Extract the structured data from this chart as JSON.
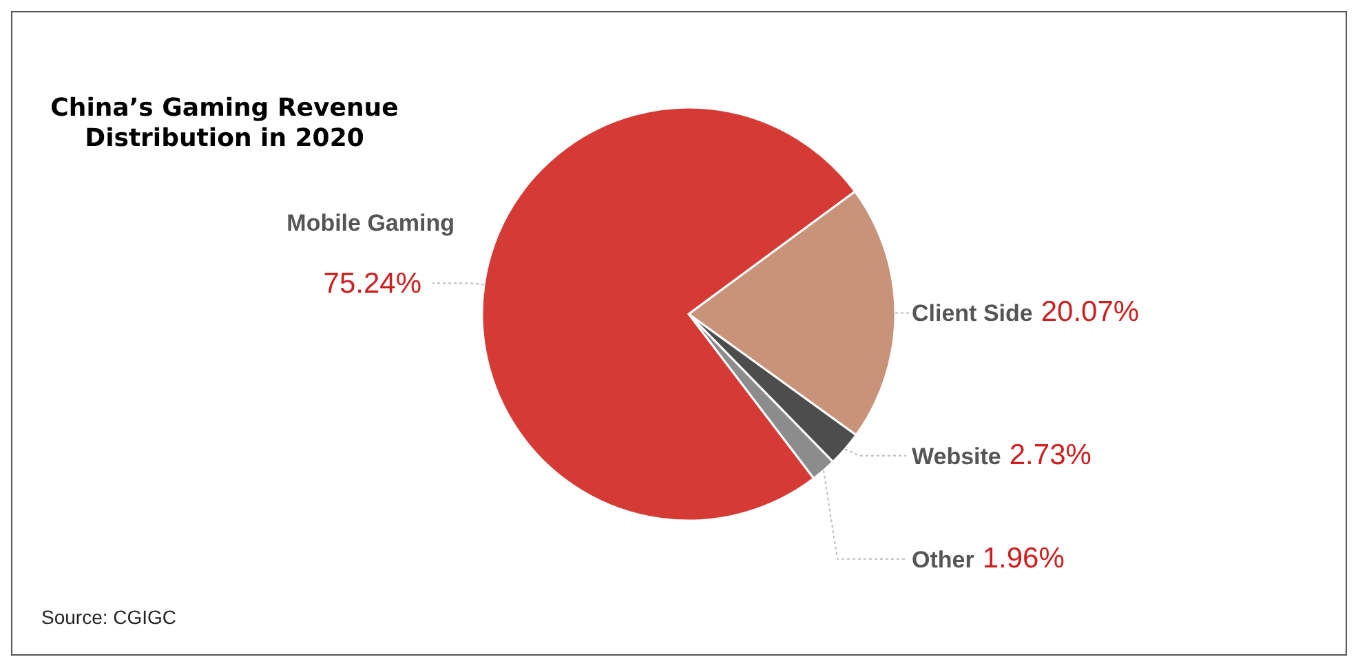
{
  "chart_data": {
    "type": "pie",
    "title": "China’s Gaming Revenue Distribution in 2020",
    "categories": [
      "Client Side",
      "Website",
      "Other",
      "Mobile Gaming"
    ],
    "values": [
      20.07,
      2.73,
      1.96,
      75.24
    ],
    "colors": [
      "#c9937a",
      "#4d4d4d",
      "#8c8c8c",
      "#d63a35"
    ],
    "value_labels": [
      "20.07%",
      "2.73%",
      "1.96%",
      "75.24%"
    ],
    "annotations": [
      "Source: CGIGC"
    ]
  }
}
